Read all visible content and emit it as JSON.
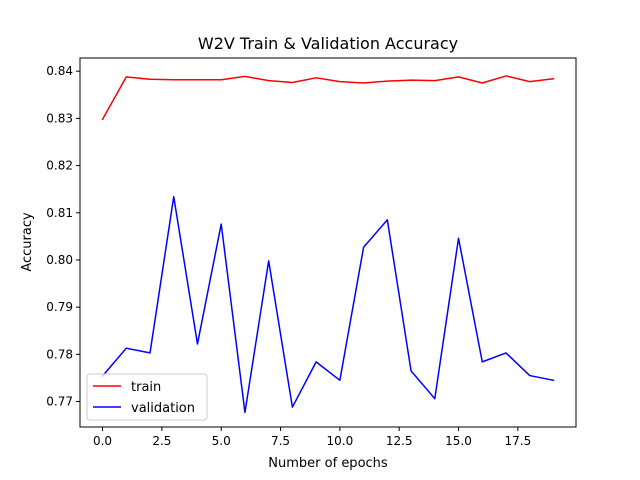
{
  "chart_data": {
    "type": "line",
    "title": "W2V Train & Validation Accuracy",
    "xlabel": "Number of epochs",
    "ylabel": "Accuracy",
    "xlim": [
      -0.95,
      19.95
    ],
    "ylim": [
      0.7646,
      0.8428
    ],
    "x_ticks": [
      0,
      2.5,
      5,
      7.5,
      10,
      12.5,
      15,
      17.5
    ],
    "x_tick_labels": [
      "0.0",
      "2.5",
      "5.0",
      "7.5",
      "10.0",
      "12.5",
      "15.0",
      "17.5"
    ],
    "y_ticks": [
      0.77,
      0.78,
      0.79,
      0.8,
      0.81,
      0.82,
      0.83,
      0.84
    ],
    "y_tick_labels": [
      "0.77",
      "0.78",
      "0.79",
      "0.80",
      "0.81",
      "0.82",
      "0.83",
      "0.84"
    ],
    "grid": false,
    "legend_position": "lower-left",
    "x": [
      0,
      1,
      2,
      3,
      4,
      5,
      6,
      7,
      8,
      9,
      10,
      11,
      12,
      13,
      14,
      15,
      16,
      17,
      18,
      19
    ],
    "series": [
      {
        "name": "train",
        "color": "#ff0000",
        "values": [
          0.8298,
          0.8388,
          0.8383,
          0.8382,
          0.8382,
          0.8382,
          0.8389,
          0.838,
          0.8376,
          0.8386,
          0.8378,
          0.8375,
          0.8379,
          0.8381,
          0.838,
          0.8388,
          0.8375,
          0.839,
          0.8378,
          0.8384
        ]
      },
      {
        "name": "validation",
        "color": "#0000ff",
        "values": [
          0.7754,
          0.7813,
          0.7803,
          0.8134,
          0.7822,
          0.8076,
          0.7677,
          0.7998,
          0.7688,
          0.7784,
          0.7745,
          0.8027,
          0.8085,
          0.7765,
          0.7706,
          0.8046,
          0.7784,
          0.7803,
          0.7755,
          0.7745
        ]
      }
    ]
  }
}
